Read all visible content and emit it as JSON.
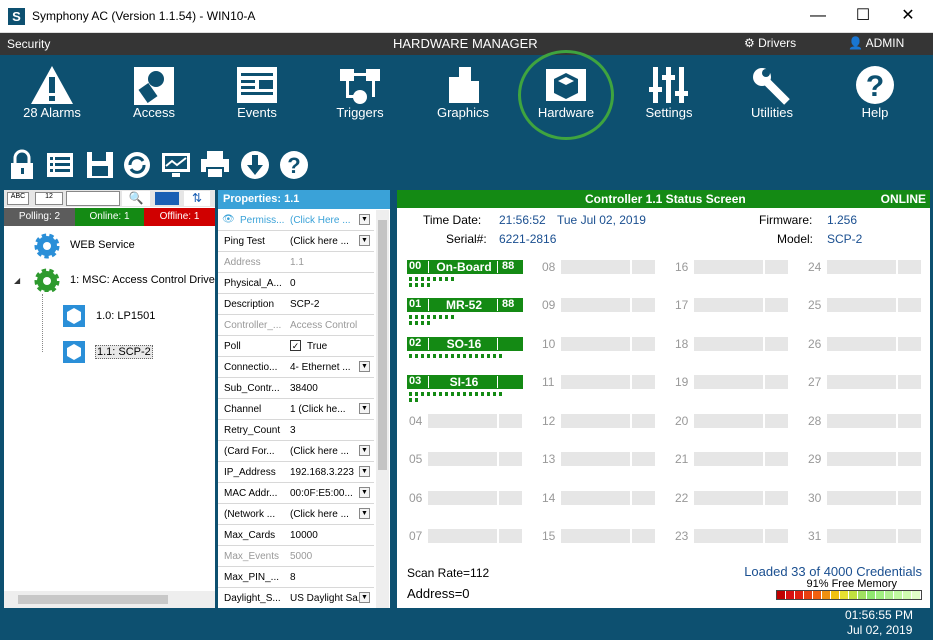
{
  "window": {
    "title": "Symphony AC  (Version 1.1.54) - WIN10-A",
    "app_letter": "S"
  },
  "menubar": {
    "security": "Security",
    "title": "HARDWARE MANAGER",
    "drivers": "Drivers",
    "user": "ADMIN"
  },
  "nav": [
    {
      "label": "28 Alarms",
      "icon": "alarm-icon"
    },
    {
      "label": "Access",
      "icon": "access-icon"
    },
    {
      "label": "Events",
      "icon": "events-icon"
    },
    {
      "label": "Triggers",
      "icon": "triggers-icon"
    },
    {
      "label": "Graphics",
      "icon": "graphics-icon"
    },
    {
      "label": "Hardware",
      "icon": "hardware-icon"
    },
    {
      "label": "Settings",
      "icon": "settings-icon"
    },
    {
      "label": "Utilities",
      "icon": "utilities-icon"
    },
    {
      "label": "Help",
      "icon": "help-icon"
    }
  ],
  "left": {
    "polling": "Polling:  2",
    "online": "Online:  1",
    "offline": "Offline:  1",
    "tree": [
      "WEB Service",
      "1:  MSC: Access Control Drive",
      "1.0:  LP1501",
      "1.1:  SCP-2"
    ]
  },
  "props": {
    "title": "Properties:  1.1",
    "rows": [
      {
        "k": "Permiss...",
        "v": "(Click Here ...",
        "grey": false,
        "dd": true
      },
      {
        "k": "Ping Test",
        "v": "(Click here ...",
        "grey": false,
        "dd": true
      },
      {
        "k": "Address",
        "v": "1.1",
        "grey": true,
        "dd": false
      },
      {
        "k": "Physical_A...",
        "v": "0",
        "grey": false,
        "dd": false
      },
      {
        "k": "Description",
        "v": "SCP-2",
        "grey": false,
        "dd": false
      },
      {
        "k": "Controller_...",
        "v": "Access Control",
        "grey": true,
        "dd": false
      },
      {
        "k": "Poll",
        "v": "True",
        "grey": false,
        "dd": false,
        "check": true
      },
      {
        "k": "Connectio...",
        "v": "4- Ethernet ...",
        "grey": false,
        "dd": true
      },
      {
        "k": "Sub_Contr...",
        "v": "38400",
        "grey": false,
        "dd": false
      },
      {
        "k": "Channel",
        "v": "1  (Click he...",
        "grey": false,
        "dd": true
      },
      {
        "k": "Retry_Count",
        "v": "3",
        "grey": false,
        "dd": false
      },
      {
        "k": "(Card For...",
        "v": "(Click here ...",
        "grey": false,
        "dd": true
      },
      {
        "k": "IP_Address",
        "v": "192.168.3.223",
        "grey": false,
        "dd": true
      },
      {
        "k": "MAC Addr...",
        "v": "00:0F:E5:00...",
        "grey": false,
        "dd": true
      },
      {
        "k": "(Network ...",
        "v": "(Click here ...",
        "grey": false,
        "dd": true
      },
      {
        "k": "Max_Cards",
        "v": "10000",
        "grey": false,
        "dd": false
      },
      {
        "k": "Max_Events",
        "v": "5000",
        "grey": true,
        "dd": false
      },
      {
        "k": "Max_PIN_...",
        "v": "8",
        "grey": false,
        "dd": false
      },
      {
        "k": "Daylight_S...",
        "v": "US Daylight Sa...",
        "grey": false,
        "dd": true
      }
    ]
  },
  "controller": {
    "title": "Controller 1.1 Status Screen",
    "status": "ONLINE",
    "time_label": "Time Date:",
    "time": "21:56:52",
    "date": "Tue Jul 02, 2019",
    "serial_label": "Serial#:",
    "serial": "6221-2816",
    "fw_label": "Firmware:",
    "fw": "1.256",
    "model_label": "Model:",
    "model": "SCP-2",
    "boards": [
      {
        "id": "00",
        "name": "On-Board",
        "num": "88"
      },
      {
        "id": "01",
        "name": "MR-52",
        "num": "88"
      },
      {
        "id": "02",
        "name": "SO-16",
        "num": ""
      },
      {
        "id": "03",
        "name": "SI-16",
        "num": ""
      }
    ],
    "empty": [
      "04",
      "05",
      "06",
      "07",
      "08",
      "09",
      "10",
      "11",
      "12",
      "13",
      "14",
      "15",
      "16",
      "17",
      "18",
      "19",
      "20",
      "21",
      "22",
      "23",
      "24",
      "25",
      "26",
      "27",
      "28",
      "29",
      "30",
      "31"
    ],
    "scan": "Scan Rate=112",
    "address": "Address=0",
    "loaded": "Loaded 33 of 4000 Credentials",
    "memory": "91% Free Memory"
  },
  "footer": {
    "time": "01:56:55 PM",
    "date": "Jul 02, 2019"
  }
}
